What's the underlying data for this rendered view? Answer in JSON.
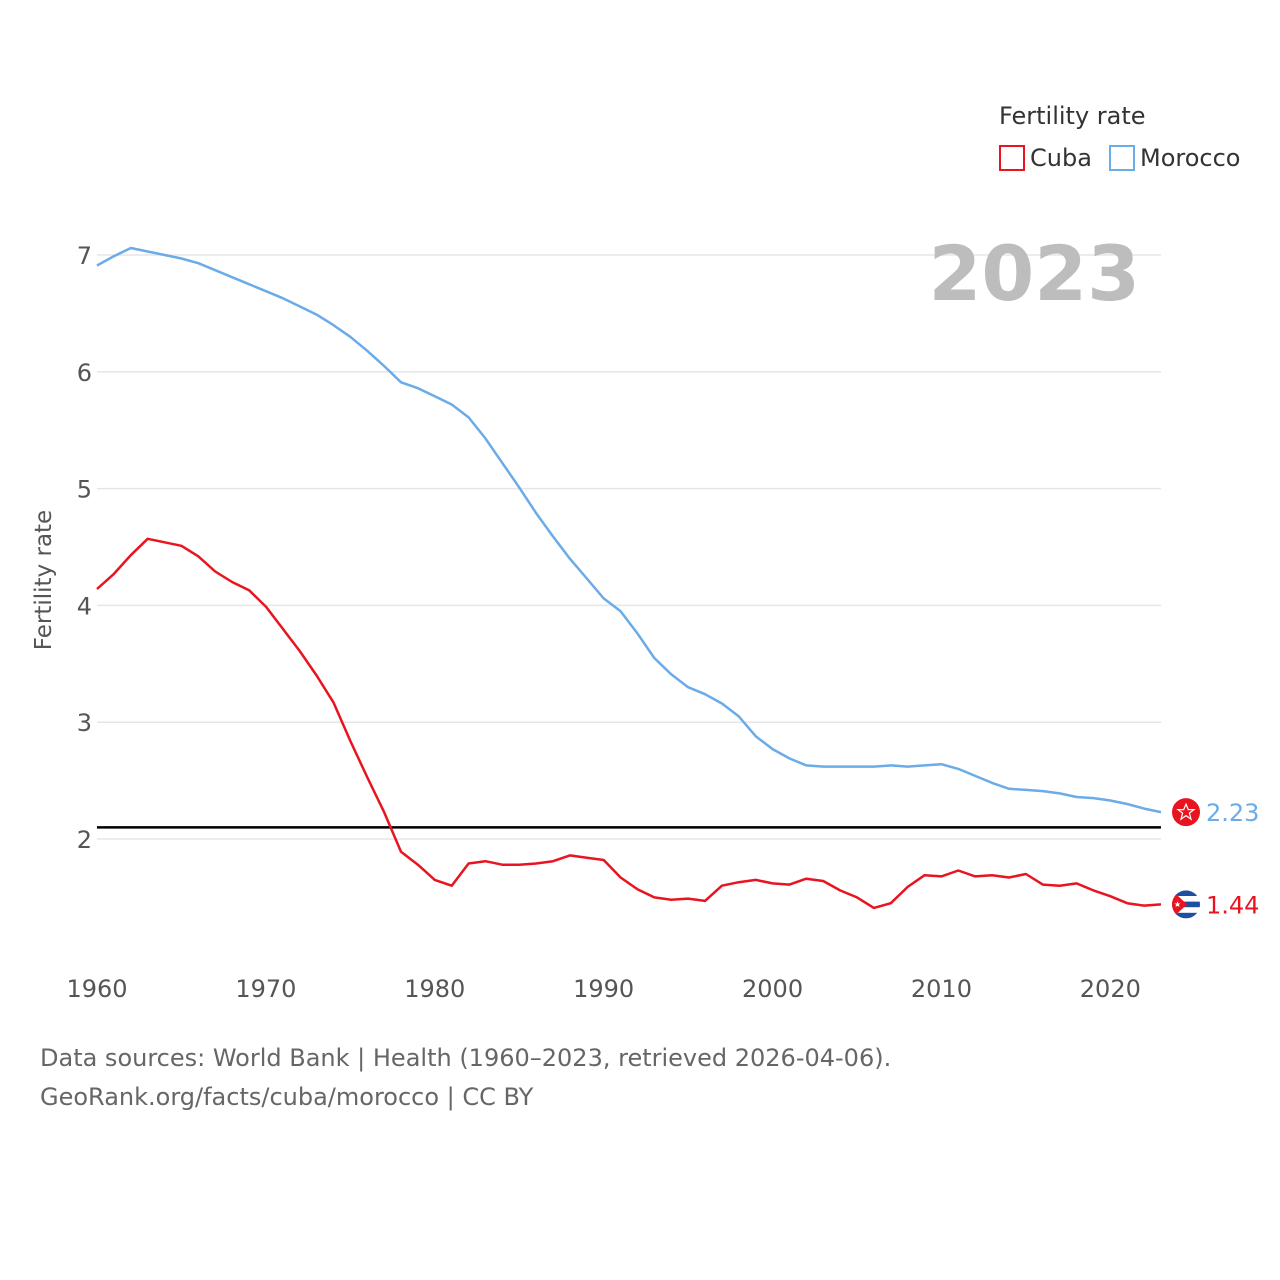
{
  "chart_data": {
    "type": "line",
    "year_label": "2023",
    "legend_title": "Fertility rate",
    "ylabel": "Fertility rate",
    "xlabel": "",
    "xlim": [
      1960,
      2023
    ],
    "ylim": [
      1,
      7.5
    ],
    "x_ticks": [
      "1960",
      "1970",
      "1980",
      "1990",
      "2000",
      "2010",
      "2020"
    ],
    "y_ticks": [
      "2",
      "3",
      "4",
      "5",
      "6",
      "7"
    ],
    "reference_line": 2.1,
    "x": [
      1960,
      1961,
      1962,
      1963,
      1964,
      1965,
      1966,
      1967,
      1968,
      1969,
      1970,
      1971,
      1972,
      1973,
      1974,
      1975,
      1976,
      1977,
      1978,
      1979,
      1980,
      1981,
      1982,
      1983,
      1984,
      1985,
      1986,
      1987,
      1988,
      1989,
      1990,
      1991,
      1992,
      1993,
      1994,
      1995,
      1996,
      1997,
      1998,
      1999,
      2000,
      2001,
      2002,
      2003,
      2004,
      2005,
      2006,
      2007,
      2008,
      2009,
      2010,
      2011,
      2012,
      2013,
      2014,
      2015,
      2016,
      2017,
      2018,
      2019,
      2020,
      2021,
      2022,
      2023
    ],
    "series": [
      {
        "name": "Cuba",
        "color": "#e8141f",
        "end_label": "1.44",
        "flag": "cuba-flag-icon",
        "values": [
          4.14,
          4.27,
          4.43,
          4.57,
          4.54,
          4.51,
          4.42,
          4.29,
          4.2,
          4.13,
          3.99,
          3.8,
          3.61,
          3.4,
          3.17,
          2.84,
          2.53,
          2.23,
          1.89,
          1.78,
          1.65,
          1.6,
          1.79,
          1.81,
          1.78,
          1.78,
          1.79,
          1.81,
          1.86,
          1.84,
          1.82,
          1.67,
          1.57,
          1.5,
          1.48,
          1.49,
          1.47,
          1.6,
          1.63,
          1.65,
          1.62,
          1.61,
          1.66,
          1.64,
          1.56,
          1.5,
          1.41,
          1.45,
          1.59,
          1.69,
          1.68,
          1.73,
          1.68,
          1.69,
          1.67,
          1.7,
          1.61,
          1.6,
          1.62,
          1.56,
          1.51,
          1.45,
          1.43,
          1.44
        ]
      },
      {
        "name": "Morocco",
        "color": "#6aabe8",
        "end_label": "2.23",
        "flag": "morocco-flag-icon",
        "values": [
          6.91,
          6.99,
          7.06,
          7.03,
          7.0,
          6.97,
          6.93,
          6.87,
          6.81,
          6.75,
          6.69,
          6.63,
          6.56,
          6.49,
          6.4,
          6.3,
          6.18,
          6.05,
          5.91,
          5.86,
          5.79,
          5.72,
          5.61,
          5.43,
          5.22,
          5.01,
          4.79,
          4.59,
          4.4,
          4.23,
          4.06,
          3.95,
          3.76,
          3.55,
          3.41,
          3.3,
          3.24,
          3.16,
          3.05,
          2.88,
          2.77,
          2.69,
          2.63,
          2.62,
          2.62,
          2.62,
          2.62,
          2.63,
          2.62,
          2.63,
          2.64,
          2.6,
          2.54,
          2.48,
          2.43,
          2.42,
          2.41,
          2.39,
          2.36,
          2.35,
          2.33,
          2.3,
          2.26,
          2.23
        ]
      }
    ]
  },
  "footer": {
    "line1": "Data sources: World Bank | Health (1960–2023, retrieved 2026-04-06).",
    "line2": "GeoRank.org/facts/cuba/morocco | CC BY"
  }
}
